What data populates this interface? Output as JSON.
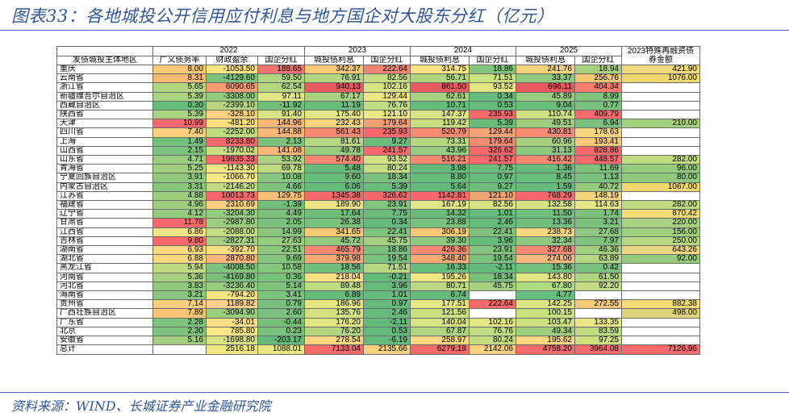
{
  "title": "图表33：各地城投公开信用应付利息与地方国企对大股东分红（亿元）",
  "source": "资料来源：WIND、长城证券产业金融研究院",
  "chart_data": {
    "type": "table",
    "year_headers": [
      "2022",
      "2023",
      "2024",
      "2025"
    ],
    "special_header": "2023特殊再融资债券金额",
    "columns": [
      "发债城投主体地区",
      "广义债务率",
      "财政盈余",
      "国企分红",
      "城投债利息",
      "国企分红",
      "城投债利息",
      "国企分红",
      "城投债利息",
      "国企分红"
    ],
    "rows": [
      {
        "region": "重庆",
        "values": [
          "8.00",
          "-1053.50",
          "188.65",
          "342.37",
          "222.64",
          "314.75",
          "18.86",
          "241.76",
          "18.94",
          "421.90"
        ],
        "colors": [
          "#f8c975",
          "#fbe37f",
          "#ec7470",
          "#f8c875",
          "#ef8770",
          "#fbe37f",
          "#82c47d",
          "#f5d37b",
          "#a8d07f",
          "#f1d87f"
        ]
      },
      {
        "region": "云南省",
        "values": [
          "8.31",
          "-4129.60",
          "59.50",
          "76.91",
          "82.56",
          "56.71",
          "71.51",
          "33.37",
          "256.76",
          "1076.00"
        ],
        "colors": [
          "#f7b871",
          "#7cc27d",
          "#b1d680",
          "#b4d580",
          "#c5dd80",
          "#b0d580",
          "#cbe07f",
          "#8fca7e",
          "#f4c573",
          "#f0d76e"
        ]
      },
      {
        "region": "浙江省",
        "values": [
          "5.65",
          "6090.65",
          "62.54",
          "940.13",
          "102.16",
          "861.50",
          "93.52",
          "696.11",
          "404.34",
          ""
        ],
        "colors": [
          "#b2d580",
          "#f69a74",
          "#b5d680",
          "#e8595f",
          "#d8e383",
          "#e85a5f",
          "#dfe683",
          "#e8585e",
          "#f97b6d",
          ""
        ]
      },
      {
        "region": "新疆维吾尔自治区",
        "values": [
          "5.39",
          "-3308.00",
          "97.11",
          "67.17",
          "129.44",
          "62.61",
          "0.34",
          "45.89",
          "8.99",
          ""
        ],
        "colors": [
          "#a9d17f",
          "#92cb7e",
          "#dfe683",
          "#a9d17f",
          "#efe783",
          "#a8d17f",
          "#64bb7b",
          "#9bcd7e",
          "#7fc37d",
          ""
        ]
      },
      {
        "region": "西藏自治区",
        "values": [
          "0.30",
          "-2399.10",
          "-11.92",
          "11.19",
          "76.76",
          "10.71",
          "0.53",
          "9.04",
          "0.77",
          ""
        ],
        "colors": [
          "#63be7b",
          "#b8d680",
          "#72be7b",
          "#6abe7c",
          "#c0db80",
          "#66bd7b",
          "#64bb7b",
          "#6abe7c",
          "#78c07c",
          ""
        ]
      },
      {
        "region": "陕西省",
        "values": [
          "5.39",
          "-328.10",
          "91.40",
          "175.40",
          "121.10",
          "147.37",
          "235.93",
          "110.74",
          "409.79",
          ""
        ],
        "colors": [
          "#a9d17f",
          "#fad17f",
          "#d9e383",
          "#e2e583",
          "#ebe883",
          "#d9e383",
          "#f8696b",
          "#cbe07f",
          "#f8696b",
          ""
        ]
      },
      {
        "region": "天津",
        "values": [
          "10.99",
          "-481.20",
          "144.96",
          "232.43",
          "179.64",
          "119.42",
          "5.39",
          "49.51",
          "6.94",
          "210.00"
        ],
        "colors": [
          "#f8696b",
          "#fcdf80",
          "#f8b677",
          "#f9d57f",
          "#f59d74",
          "#c8de80",
          "#6abc7b",
          "#9fd07e",
          "#7cc17d",
          "#a5d07f"
        ]
      },
      {
        "region": "四川省",
        "values": [
          "7.40",
          "-2252.00",
          "144.88",
          "561.43",
          "235.93",
          "520.79",
          "129.44",
          "430.81",
          "178.63",
          ""
        ],
        "colors": [
          "#fbcf7c",
          "#c0da80",
          "#f8b677",
          "#f88871",
          "#f8696b",
          "#f88a72",
          "#f4a374",
          "#f88a72",
          "#f6d57e",
          ""
        ]
      },
      {
        "region": "上海",
        "values": [
          "1.49",
          "8233.80",
          "2.13",
          "81.61",
          "9.27",
          "73.31",
          "179.64",
          "60.96",
          "193.41",
          ""
        ],
        "colors": [
          "#73c07c",
          "#f8696b",
          "#7bc27d",
          "#b7d880",
          "#6cbd7c",
          "#b6d780",
          "#f58a71",
          "#a8d17f",
          "#f9c978",
          ""
        ]
      },
      {
        "region": "山西省",
        "values": [
          "2.15",
          "-1970.02",
          "141.08",
          "49.78",
          "241.57",
          "43.96",
          "326.62",
          "31.13",
          "828.86",
          ""
        ],
        "colors": [
          "#7dc27d",
          "#c8de80",
          "#f8b977",
          "#96cb7e",
          "#f8696b",
          "#94cb7e",
          "#f8696b",
          "#8dc97e",
          "#f8696b",
          ""
        ]
      },
      {
        "region": "山东省",
        "values": [
          "4.71",
          "19835.33",
          "53.92",
          "574.40",
          "93.52",
          "516.21",
          "241.57",
          "416.42",
          "448.57",
          "282.00"
        ],
        "colors": [
          "#9bcd7e",
          "#f8696b",
          "#aad27f",
          "#f88771",
          "#d4e183",
          "#f88a72",
          "#f8696b",
          "#f88a72",
          "#f8696b",
          "#c0da80"
        ]
      },
      {
        "region": "青海省",
        "values": [
          "5.25",
          "-1143.30",
          "69.78",
          "5.48",
          "80.24",
          "3.98",
          "7.75",
          "1.36",
          "11.69",
          "96.00"
        ],
        "colors": [
          "#a4cf7f",
          "#f2e783",
          "#bfdb80",
          "#64bb7b",
          "#c4dd80",
          "#62bb7b",
          "#6fbd7c",
          "#64bb7b",
          "#7dc27d",
          "#96cb7e"
        ]
      },
      {
        "region": "宁夏回族自治区",
        "values": [
          "3.91",
          "-1066.70",
          "10.08",
          "9.60",
          "18.34",
          "8.80",
          "0.97",
          "8.45",
          "1.13",
          "80.00"
        ],
        "colors": [
          "#91c97e",
          "#f5e783",
          "#84c67d",
          "#68bd7b",
          "#78c07c",
          "#66bd7b",
          "#64bb7b",
          "#6abe7c",
          "#79c17c",
          "#8ec97e"
        ]
      },
      {
        "region": "内蒙古自治区",
        "values": [
          "3.31",
          "-2146.20",
          "4.66",
          "6.06",
          "5.39",
          "5.64",
          "9.27",
          "1.59",
          "40.72",
          "1067.00"
        ],
        "colors": [
          "#89c77d",
          "#c3db80",
          "#7ec37d",
          "#64bb7b",
          "#6abc7b",
          "#62bb7b",
          "#6fbd7c",
          "#64bb7b",
          "#96cb7e",
          "#f0d76e"
        ]
      },
      {
        "region": "江苏省",
        "values": [
          "4.88",
          "10013.73",
          "129.75",
          "1345.38",
          "326.62",
          "1142.81",
          "121.10",
          "768.29",
          "148.19",
          ""
        ],
        "colors": [
          "#9ece7e",
          "#f8696b",
          "#f8c075",
          "#f8696b",
          "#f8696b",
          "#f8696b",
          "#efa373",
          "#f8696b",
          "#f3d37c",
          ""
        ]
      },
      {
        "region": "福建省",
        "values": [
          "4.96",
          "2310.69",
          "-1.39",
          "189.90",
          "23.91",
          "167.19",
          "82.56",
          "132.58",
          "114.63",
          "282.00"
        ],
        "colors": [
          "#9fcf7e",
          "#fbcf7d",
          "#74be7b",
          "#e9e683",
          "#82c47d",
          "#e0e583",
          "#d7e283",
          "#d5e283",
          "#e6e582",
          "#c0da80"
        ]
      },
      {
        "region": "辽宁省",
        "values": [
          "4.12",
          "-3204.30",
          "4.49",
          "17.64",
          "7.75",
          "14.32",
          "1.01",
          "11.50",
          "1.74",
          "870.42"
        ],
        "colors": [
          "#94cb7e",
          "#96cc7e",
          "#7ec37d",
          "#6ebf7c",
          "#6bbc7b",
          "#69bc7b",
          "#64bb7b",
          "#6dbf7c",
          "#7ac17c",
          "#f3db76"
        ]
      },
      {
        "region": "甘肃省",
        "values": [
          "11.78",
          "-2987.80",
          "2.05",
          "26.38",
          "0.34",
          "23.88",
          "2.46",
          "13.36",
          "3.21",
          "220.00"
        ],
        "colors": [
          "#f8696b",
          "#9ccd7e",
          "#7bc27d",
          "#7ac17c",
          "#63bb7b",
          "#7ac17c",
          "#65bb7b",
          "#71bf7c",
          "#7bc27d",
          "#a8d17f"
        ]
      },
      {
        "region": "江西省",
        "values": [
          "6.86",
          "-2088.00",
          "14.99",
          "341.65",
          "22.41",
          "306.19",
          "22.41",
          "238.73",
          "27.68",
          "156.00"
        ],
        "colors": [
          "#f4e383",
          "#c5dc80",
          "#89c77d",
          "#f8c975",
          "#80c37d",
          "#f8c975",
          "#80c37d",
          "#f8d67e",
          "#8dc97e",
          "#9fcf7e"
        ]
      },
      {
        "region": "吉林省",
        "values": [
          "9.80",
          "-2827.31",
          "27.63",
          "45.72",
          "45.75",
          "39.30",
          "3.96",
          "32.34",
          "7.97",
          "250.00"
        ],
        "colors": [
          "#f8696b",
          "#a3cf7f",
          "#96cb7e",
          "#93ca7e",
          "#a5d07f",
          "#8dc97e",
          "#67bc7b",
          "#8dc97e",
          "#7dc27d",
          "#b7d880"
        ]
      },
      {
        "region": "湖南省",
        "values": [
          "6.93",
          "-392.70",
          "22.51",
          "465.79",
          "18.86",
          "426.36",
          "23.91",
          "327.68",
          "46.36",
          "643.26"
        ],
        "colors": [
          "#f8d67e",
          "#fcdd80",
          "#90c97e",
          "#f88a72",
          "#79c17c",
          "#f88a72",
          "#82c47d",
          "#f88a72",
          "#a0cf7e",
          "#ecd67f"
        ]
      },
      {
        "region": "湖北省",
        "values": [
          "6.88",
          "2870.80",
          "9.69",
          "379.98",
          "19.54",
          "348.40",
          "19.54",
          "274.06",
          "63.89",
          "92.00"
        ],
        "colors": [
          "#f7d67e",
          "#fcb57b",
          "#84c67d",
          "#f8aa72",
          "#7ac17c",
          "#f8aa72",
          "#7ac17c",
          "#f8b77c",
          "#b3d680",
          "#96cb7e"
        ]
      },
      {
        "region": "黑龙江省",
        "values": [
          "5.94",
          "-4008.50",
          "10.58",
          "18.56",
          "71.51",
          "16.33",
          "-2.11",
          "15.36",
          "0.42",
          ""
        ],
        "colors": [
          "#c1da80",
          "#7ec37d",
          "#85c67d",
          "#70bf7c",
          "#b8d880",
          "#6abc7b",
          "#63bb7b",
          "#73bf7c",
          "#78c07c",
          ""
        ]
      },
      {
        "region": "河南省",
        "values": [
          "5.36",
          "-4169.80",
          "0.36",
          "218.04",
          "-0.21",
          "195.26",
          "18.34",
          "143.80",
          "61.50",
          ""
        ],
        "colors": [
          "#a6d07f",
          "#7abf7d",
          "#78c07c",
          "#f8e082",
          "#63bb7b",
          "#ede783",
          "#78c07c",
          "#dfe683",
          "#b0d580",
          ""
        ]
      },
      {
        "region": "河北省",
        "values": [
          "3.83",
          "-3236.40",
          "5.14",
          "89.48",
          "3.96",
          "80.71",
          "45.75",
          "67.80",
          "92.20",
          ""
        ],
        "colors": [
          "#8fc97e",
          "#96cc7e",
          "#7fc37d",
          "#bfdb80",
          "#67bc7b",
          "#bbd980",
          "#a5d07f",
          "#addb80",
          "#c5dd80",
          ""
        ]
      },
      {
        "region": "海南省",
        "values": [
          "3.21",
          "-794.20",
          "3.41",
          "6.89",
          "1.01",
          "6.74",
          "",
          "4.77",
          "",
          ""
        ],
        "colors": [
          "#86c67d",
          "#f8e483",
          "#7dc27d",
          "#65bb7b",
          "#64bb7b",
          "#64bb7b",
          "",
          "#67bd7b",
          "",
          ""
        ]
      },
      {
        "region": "贵州省",
        "values": [
          "7.14",
          "1189.82",
          "0.79",
          "186.96",
          "0.97",
          "177.51",
          "222.64",
          "142.25",
          "272.55",
          "882.38"
        ],
        "colors": [
          "#fbcf7d",
          "#fbd08c",
          "#79c17c",
          "#e8e683",
          "#64bb7b",
          "#e5e583",
          "#f8696b",
          "#dde583",
          "#f6c979",
          "#f3db76"
        ]
      },
      {
        "region": "广西壮族自治区",
        "values": [
          "7.89",
          "-3094.90",
          "2.60",
          "135.76",
          "2.46",
          "121.56",
          "",
          "100.15",
          "",
          "498.00"
        ],
        "colors": [
          "#f9c574",
          "#9acd7e",
          "#7cc27d",
          "#d3e183",
          "#65bb7b",
          "#cce080",
          "",
          "#c9df80",
          "",
          "#e1d37a"
        ]
      },
      {
        "region": "广东省",
        "values": [
          "2.28",
          "-34.01",
          "-0.44",
          "176.20",
          "-2.11",
          "140.04",
          "102.16",
          "103.47",
          "133.35",
          ""
        ],
        "colors": [
          "#7ec37d",
          "#fcdf82",
          "#76c07c",
          "#e3e583",
          "#63bb7b",
          "#d7e283",
          "#dfe683",
          "#cce080",
          "#ebe883",
          ""
        ]
      },
      {
        "region": "北京",
        "values": [
          "2.30",
          "785.80",
          "0.23",
          "76.20",
          "0.53",
          "67.87",
          "76.76",
          "49.34",
          "83.59",
          ""
        ],
        "colors": [
          "#7ec37d",
          "#fde684",
          "#78c07c",
          "#b4d580",
          "#64bb7b",
          "#b0d580",
          "#c0db80",
          "#9fd07e",
          "#c0db80",
          ""
        ]
      },
      {
        "region": "安徽省",
        "values": [
          "5.16",
          "-1698.80",
          "-203.17",
          "278.54",
          "-6.19",
          "258.97",
          "80.24",
          "195.62",
          "97.25",
          ""
        ],
        "colors": [
          "#a2cf7f",
          "#d9e283",
          "#63bb7b",
          "#f8d57e",
          "#63bb7b",
          "#f9d57f",
          "#c4dd80",
          "#f8d57e",
          "#cde080",
          ""
        ]
      },
      {
        "region": "总计",
        "values": [
          "",
          "2516.18",
          "1088.01",
          "7133.04",
          "2135.66",
          "6279.18",
          "2142.06",
          "4758.20",
          "3964.08",
          "7126.96"
        ],
        "colors": [
          "",
          "#f2e783",
          "#e8e683",
          "#f8696b",
          "#fbd07f",
          "#f8696b",
          "#fbd07f",
          "#f8696b",
          "#f8696b",
          "#f8696b"
        ]
      }
    ]
  }
}
